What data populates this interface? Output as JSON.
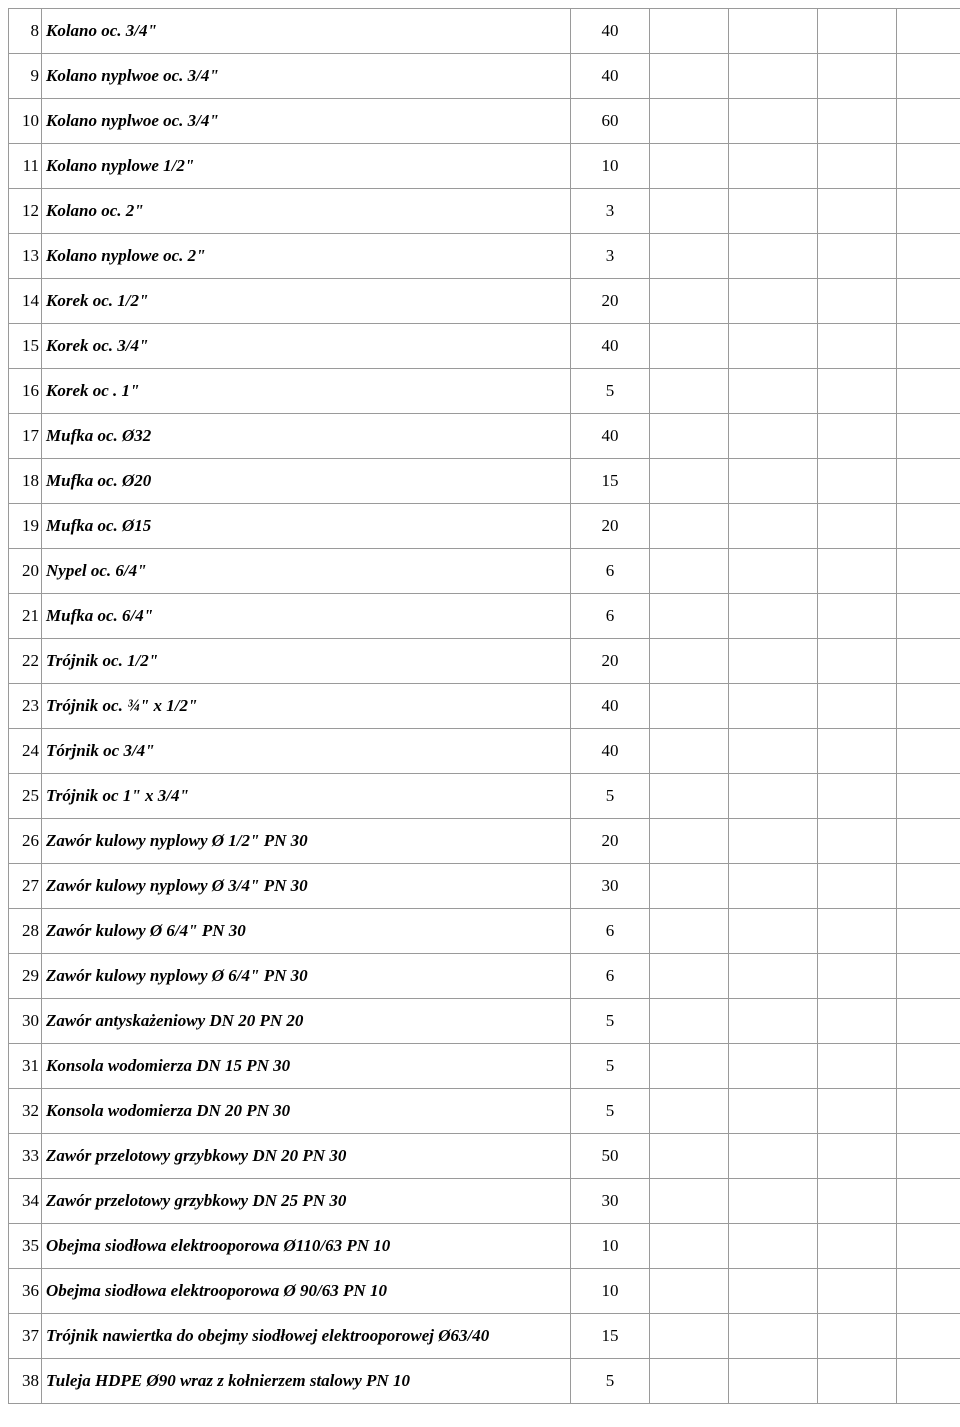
{
  "table": {
    "rows": [
      {
        "num": "8",
        "name": "Kolano oc. 3/4\"",
        "qty": "40"
      },
      {
        "num": "9",
        "name": "Kolano nyplwoe oc. 3/4\"",
        "qty": "40"
      },
      {
        "num": "10",
        "name": "Kolano nyplwoe oc. 3/4\"",
        "qty": "60"
      },
      {
        "num": "11",
        "name": "Kolano nyplowe 1/2\"",
        "qty": "10"
      },
      {
        "num": "12",
        "name": "Kolano oc. 2\"",
        "qty": "3"
      },
      {
        "num": "13",
        "name": "Kolano nyplowe oc. 2\"",
        "qty": "3"
      },
      {
        "num": "14",
        "name": "Korek oc. 1/2\"",
        "qty": "20"
      },
      {
        "num": "15",
        "name": "Korek oc. 3/4\"",
        "qty": "40"
      },
      {
        "num": "16",
        "name": "Korek oc . 1\"",
        "qty": "5"
      },
      {
        "num": "17",
        "name": "Mufka oc. Ø32",
        "qty": "40"
      },
      {
        "num": "18",
        "name": "Mufka oc. Ø20",
        "qty": "15"
      },
      {
        "num": "19",
        "name": "Mufka oc. Ø15",
        "qty": "20"
      },
      {
        "num": "20",
        "name": "Nypel oc. 6/4\"",
        "qty": "6"
      },
      {
        "num": "21",
        "name": "Mufka oc. 6/4\"",
        "qty": "6"
      },
      {
        "num": "22",
        "name": "Trójnik oc. 1/2\"",
        "qty": "20"
      },
      {
        "num": "23",
        "name": "Trójnik oc. ¾\" x 1/2\"",
        "qty": "40"
      },
      {
        "num": "24",
        "name": "Tórjnik oc 3/4\"",
        "qty": "40"
      },
      {
        "num": "25",
        "name": "Trójnik oc 1\" x 3/4\"",
        "qty": "5"
      },
      {
        "num": "26",
        "name": "Zawór kulowy nyplowy Ø 1/2\" PN 30",
        "qty": "20"
      },
      {
        "num": "27",
        "name": "Zawór kulowy nyplowy Ø 3/4\" PN 30",
        "qty": "30"
      },
      {
        "num": "28",
        "name": "Zawór kulowy  Ø 6/4\" PN 30",
        "qty": "6"
      },
      {
        "num": "29",
        "name": "Zawór kulowy nyplowy Ø 6/4\" PN 30",
        "qty": "6"
      },
      {
        "num": "30",
        "name": "Zawór antyskażeniowy DN 20 PN 20",
        "qty": "5"
      },
      {
        "num": "31",
        "name": "Konsola wodomierza DN 15 PN 30",
        "qty": "5"
      },
      {
        "num": "32",
        "name": "Konsola wodomierza DN 20 PN 30",
        "qty": "5"
      },
      {
        "num": "33",
        "name": "Zawór przelotowy grzybkowy DN 20 PN 30",
        "qty": "50"
      },
      {
        "num": "34",
        "name": "Zawór przelotowy grzybkowy DN 25 PN 30",
        "qty": "30"
      },
      {
        "num": "35",
        "name": "Obejma siodłowa elektrooporowa Ø110/63 PN 10",
        "qty": "10"
      },
      {
        "num": "36",
        "name": "Obejma siodłowa elektrooporowa Ø 90/63 PN 10",
        "qty": "10"
      },
      {
        "num": "37",
        "name": "Trójnik nawiertka do obejmy siodłowej elektrooporowej Ø63/40",
        "qty": "15"
      },
      {
        "num": "38",
        "name": "Tuleja HDPE Ø90 wraz z kołnierzem stalowy PN 10",
        "qty": "5"
      }
    ]
  }
}
